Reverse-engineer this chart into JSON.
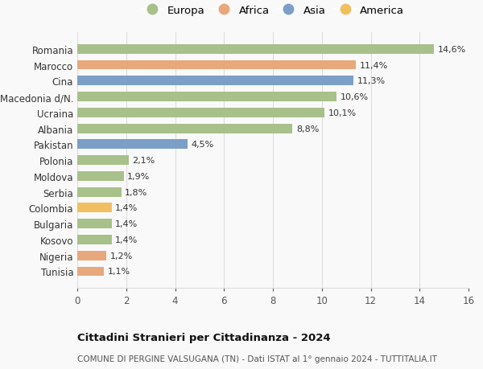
{
  "countries": [
    "Tunisia",
    "Nigeria",
    "Kosovo",
    "Bulgaria",
    "Colombia",
    "Serbia",
    "Moldova",
    "Polonia",
    "Pakistan",
    "Albania",
    "Ucraina",
    "Macedonia d/N.",
    "Cina",
    "Marocco",
    "Romania"
  ],
  "values": [
    1.1,
    1.2,
    1.4,
    1.4,
    1.4,
    1.8,
    1.9,
    2.1,
    4.5,
    8.8,
    10.1,
    10.6,
    11.3,
    11.4,
    14.6
  ],
  "labels": [
    "1,1%",
    "1,2%",
    "1,4%",
    "1,4%",
    "1,4%",
    "1,8%",
    "1,9%",
    "2,1%",
    "4,5%",
    "8,8%",
    "10,1%",
    "10,6%",
    "11,3%",
    "11,4%",
    "14,6%"
  ],
  "continents": [
    "Africa",
    "Africa",
    "Europa",
    "Europa",
    "America",
    "Europa",
    "Europa",
    "Europa",
    "Asia",
    "Europa",
    "Europa",
    "Europa",
    "Asia",
    "Africa",
    "Europa"
  ],
  "colors": {
    "Europa": "#a8c08a",
    "Africa": "#e8a87c",
    "Asia": "#7b9fc7",
    "America": "#f0c060"
  },
  "legend_order": [
    "Europa",
    "Africa",
    "Asia",
    "America"
  ],
  "xlim": [
    0,
    16
  ],
  "xticks": [
    0,
    2,
    4,
    6,
    8,
    10,
    12,
    14,
    16
  ],
  "title": "Cittadini Stranieri per Cittadinanza - 2024",
  "subtitle": "COMUNE DI PERGINE VALSUGANA (TN) - Dati ISTAT al 1° gennaio 2024 - TUTTITALIA.IT",
  "background_color": "#f9f9f9",
  "grid_color": "#dddddd",
  "bar_height": 0.6,
  "label_fontsize": 8,
  "tick_fontsize": 8.5,
  "legend_fontsize": 9.5,
  "title_fontsize": 9.5,
  "subtitle_fontsize": 7.5
}
